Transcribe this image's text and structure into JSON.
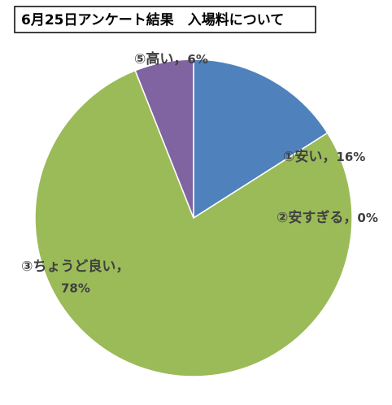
{
  "chart_data": {
    "type": "pie",
    "title": "6月25日アンケート結果　入場料について",
    "categories": [
      "①安い，",
      "②安すぎる，",
      "③ちょうど良い，",
      "⑤高い，"
    ],
    "values": [
      16,
      0,
      78,
      6
    ],
    "value_labels": [
      "16%",
      "0%",
      "78%",
      "6%"
    ],
    "colors": [
      "#4f81bd",
      "#c0504d",
      "#9bbb59",
      "#8064a2"
    ]
  }
}
